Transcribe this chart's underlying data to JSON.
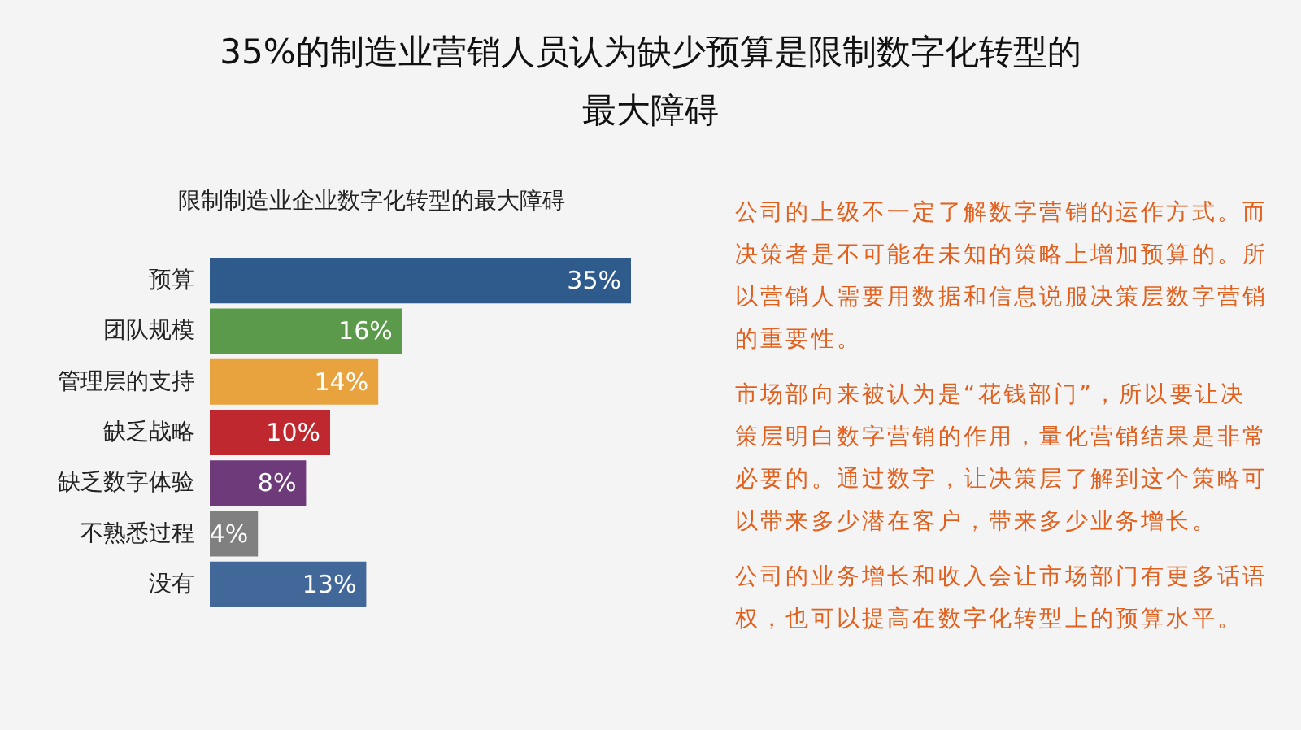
{
  "chart_data": {
    "type": "bar",
    "orientation": "horizontal",
    "title": "35%的制造业营销人员认为缺少预算是限制数字化转型的最大障碍",
    "subtitle": "限制制造业企业数字化转型的最大障碍",
    "categories": [
      "预算",
      "团队规模",
      "管理层的支持",
      "缺乏战略",
      "缺乏数字体验",
      "不熟悉过程",
      "没有"
    ],
    "values": [
      35,
      16,
      14,
      10,
      8,
      4,
      13
    ],
    "value_labels": [
      "35%",
      "16%",
      "14%",
      "10%",
      "8%",
      "4%",
      "13%"
    ],
    "colors": [
      "#2e5a8c",
      "#5b9a4a",
      "#e8a33e",
      "#c0282f",
      "#6e3a7a",
      "#808080",
      "#426899"
    ],
    "annotations": [
      "公司的上级不一定了解数字营销的运作方式。而决策者是不可能在未知的策略上增加预算的。所以营销人需要用数据和信息说服决策层数字营销的重要性。",
      "市场部向来被认为是“花钱部门”，所以要让决策层明白数字营销的作用，量化营销结果是非常必要的。通过数字，让决策层了解到这个策略可以带来多少潜在客户，带来多少业务增长。",
      "公司的业务增长和收入会让市场部门有更多话语权，也可以提高在数字化转型上的预算水平。"
    ]
  }
}
